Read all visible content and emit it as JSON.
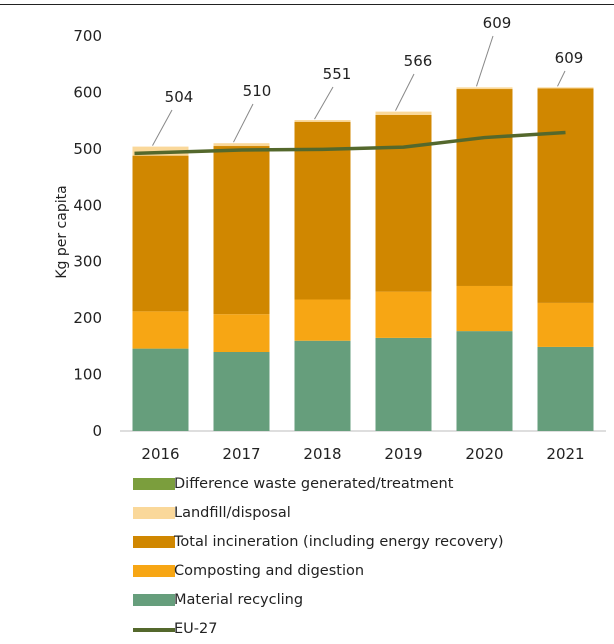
{
  "chart_data": {
    "type": "bar",
    "stacked": true,
    "categories": [
      "2016",
      "2017",
      "2018",
      "2019",
      "2020",
      "2021"
    ],
    "series": [
      {
        "name": "Material recycling",
        "color": "#669e7c",
        "values": [
          146,
          140,
          160,
          165,
          177,
          149
        ]
      },
      {
        "name": "Composting and digestion",
        "color": "#f7a614",
        "values": [
          66,
          67,
          73,
          82,
          80,
          78
        ]
      },
      {
        "name": "Total incineration (including energy recovery)",
        "color": "#d08700",
        "values": [
          276,
          298,
          315,
          313,
          349,
          380
        ]
      },
      {
        "name": "Landfill/disposal",
        "color": "#fad89a",
        "values": [
          16,
          5,
          3,
          6,
          3,
          2
        ]
      },
      {
        "name": "Difference waste generated/treatment",
        "color": "#7b9e3d",
        "values": [
          0,
          0,
          0,
          0,
          0,
          0
        ]
      }
    ],
    "line": {
      "name": "EU-27",
      "color": "#54682c",
      "values": [
        492,
        498,
        499,
        503,
        520,
        529
      ]
    },
    "totals": [
      504,
      510,
      551,
      566,
      609,
      609
    ],
    "ylabel": "Kg per capita",
    "ylim": [
      0,
      700
    ],
    "yticks": [
      0,
      100,
      200,
      300,
      400,
      500,
      600,
      700
    ],
    "legend_order": [
      "Difference waste generated/treatment",
      "Landfill/disposal",
      "Total incineration (including energy recovery)",
      "Composting and digestion",
      "Material recycling",
      "EU-27"
    ]
  }
}
